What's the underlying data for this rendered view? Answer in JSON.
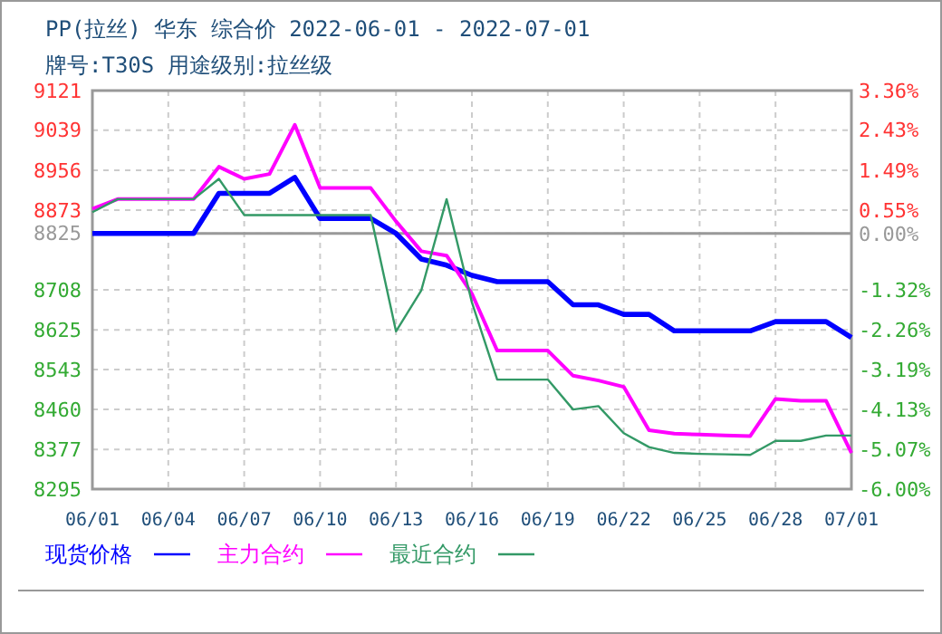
{
  "chart_data": {
    "type": "line",
    "title": "PP(拉丝) 华东 综合价 2022-06-01 - 2022-07-01",
    "subtitle": "牌号:T30S 用途级别:拉丝级",
    "x": [
      "2022-06-01",
      "2022-06-02",
      "2022-06-03",
      "2022-06-04",
      "2022-06-05",
      "2022-06-06",
      "2022-06-07",
      "2022-06-08",
      "2022-06-09",
      "2022-06-10",
      "2022-06-11",
      "2022-06-12",
      "2022-06-13",
      "2022-06-14",
      "2022-06-15",
      "2022-06-16",
      "2022-06-17",
      "2022-06-18",
      "2022-06-19",
      "2022-06-20",
      "2022-06-21",
      "2022-06-22",
      "2022-06-23",
      "2022-06-24",
      "2022-06-25",
      "2022-06-26",
      "2022-06-27",
      "2022-06-28",
      "2022-06-29",
      "2022-06-30",
      "2022-07-01"
    ],
    "series": [
      {
        "name": "现货价格",
        "color": "#0000ff",
        "values": [
          8825,
          8825,
          8825,
          8825,
          8825,
          8908,
          8908,
          8908,
          8941,
          8856,
          8856,
          8856,
          8825,
          8772,
          8759,
          8738,
          8725,
          8725,
          8725,
          8677,
          8677,
          8657,
          8657,
          8623,
          8623,
          8623,
          8623,
          8642,
          8642,
          8642,
          8609
        ]
      },
      {
        "name": "主力合约",
        "color": "#ff00ff",
        "values": [
          8876,
          8896,
          8896,
          8896,
          8896,
          8963,
          8938,
          8948,
          9050,
          8919,
          8919,
          8919,
          8850,
          8788,
          8779,
          8700,
          8582,
          8582,
          8582,
          8530,
          8520,
          8507,
          8417,
          8410,
          8408,
          8406,
          8405,
          8482,
          8478,
          8478,
          8370
        ]
      },
      {
        "name": "最近合约",
        "color": "#339966",
        "values": [
          8869,
          8896,
          8896,
          8896,
          8896,
          8938,
          8863,
          8863,
          8863,
          8863,
          8863,
          8863,
          8622,
          8707,
          8896,
          8682,
          8522,
          8522,
          8522,
          8460,
          8467,
          8411,
          8382,
          8370,
          8368,
          8367,
          8366,
          8395,
          8395,
          8406,
          8406
        ]
      }
    ],
    "ylim": [
      8295,
      9121
    ],
    "yticks": [
      9121,
      9039,
      8956,
      8873,
      8825,
      8708,
      8625,
      8543,
      8460,
      8377,
      8295
    ],
    "y2lim": [
      -6.0,
      3.36
    ],
    "y2ticks": [
      {
        "value": 3.36,
        "label": "3.36%"
      },
      {
        "value": 2.43,
        "label": "2.43%"
      },
      {
        "value": 1.49,
        "label": "1.49%"
      },
      {
        "value": 0.55,
        "label": "0.55%"
      },
      {
        "value": 0,
        "label": "0.00%"
      },
      {
        "value": -1.32,
        "label": "-1.32%"
      },
      {
        "value": -2.26,
        "label": "-2.26%"
      },
      {
        "value": -3.19,
        "label": "-3.19%"
      },
      {
        "value": -4.13,
        "label": "-4.13%"
      },
      {
        "value": -5.07,
        "label": "-5.07%"
      },
      {
        "value": -6.0,
        "label": "-6.00%"
      }
    ],
    "xlim": [
      "2022-06-01",
      "2022-07-01"
    ],
    "xticks": [
      {
        "value": "2022-06-01",
        "label": "06/01"
      },
      {
        "value": "2022-06-04",
        "label": "06/04"
      },
      {
        "value": "2022-06-07",
        "label": "06/07"
      },
      {
        "value": "2022-06-10",
        "label": "06/10"
      },
      {
        "value": "2022-06-13",
        "label": "06/13"
      },
      {
        "value": "2022-06-16",
        "label": "06/16"
      },
      {
        "value": "2022-06-19",
        "label": "06/19"
      },
      {
        "value": "2022-06-22",
        "label": "06/22"
      },
      {
        "value": "2022-06-25",
        "label": "06/25"
      },
      {
        "value": "2022-06-28",
        "label": "06/28"
      },
      {
        "value": "2022-07-01",
        "label": "07/01"
      }
    ],
    "ref_lines": [
      {
        "axis": "y",
        "value": 8825,
        "label": null,
        "color": "#999999"
      }
    ],
    "grid": true,
    "legend": "bottom",
    "marker": "none",
    "line_style": "solid"
  }
}
